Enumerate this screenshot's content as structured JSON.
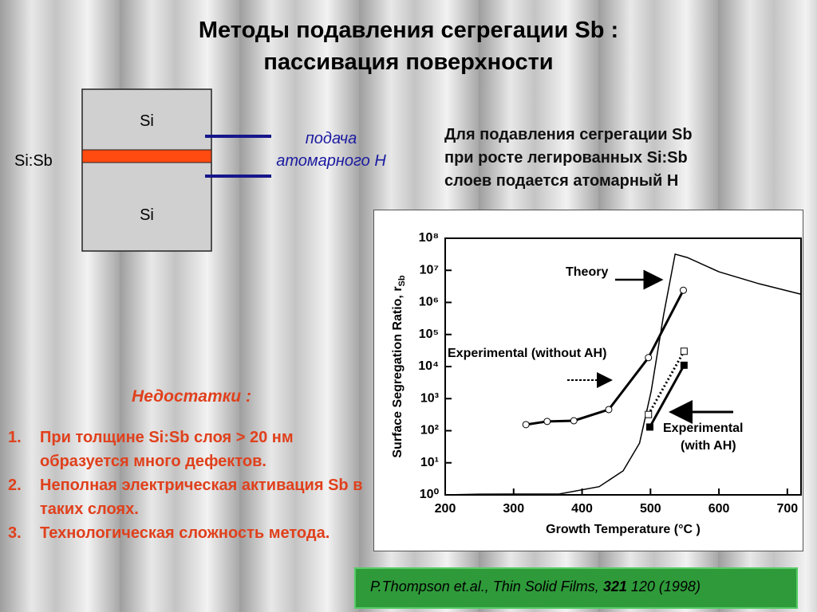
{
  "title": [
    "Методы подавления сегрегации Sb :",
    "пассивация поверхности"
  ],
  "diagram": {
    "top_layer": "Si",
    "middle_layer": "Si:Sb",
    "bottom_layer": "Si",
    "arrow_label": [
      "подача",
      "атомарного H"
    ]
  },
  "side_text": [
    "Для подавления сегрегации Sb",
    "при росте легированных Si:Sb",
    "слоев подается атомарный H"
  ],
  "drawbacks": {
    "heading": "Недостатки :",
    "items": [
      {
        "num": "1.",
        "text": "При толщине Si:Sb слоя > 20 нм образуется много дефектов."
      },
      {
        "num": "2.",
        "text": "Неполная электрическая активация Sb в таких слоях."
      },
      {
        "num": "3.",
        "text": "Технологическая сложность метода."
      }
    ]
  },
  "citation": {
    "prefix": "P.Thompson et.al., Thin Solid Films,",
    "volume": "321",
    "rest": "120 (1998)"
  },
  "chart_data": {
    "type": "line",
    "xlabel": "Growth Temperature (°C )",
    "ylabel": "Surface Segregation Ratio, r",
    "ylabel_sub": "Sb",
    "xlim": [
      200,
      720
    ],
    "xticks": [
      200,
      300,
      400,
      500,
      600,
      700
    ],
    "ylim": [
      1,
      100000000
    ],
    "log_y": true,
    "yticks": [
      {
        "value": 1,
        "label": "10⁰"
      },
      {
        "value": 10,
        "label": "10¹"
      },
      {
        "value": 100,
        "label": "10²"
      },
      {
        "value": 1000,
        "label": "10³"
      },
      {
        "value": 10000,
        "label": "10⁴"
      },
      {
        "value": 100000,
        "label": "10⁵"
      },
      {
        "value": 1000000,
        "label": "10⁶"
      },
      {
        "value": 10000000,
        "label": "10⁷"
      },
      {
        "value": 100000000,
        "label": "10⁸"
      }
    ],
    "series": [
      {
        "name": "Theory",
        "color": "#000000",
        "marker": "none",
        "dash": "solid",
        "x": [
          200,
          250,
          367,
          425,
          460,
          484,
          501,
          519,
          536,
          554,
          600,
          659,
          720
        ],
        "values": [
          1,
          1.05,
          1.07,
          1.8,
          5.6,
          41,
          1700,
          390000,
          32000000,
          25000000,
          9000000,
          3800000,
          1800000
        ]
      },
      {
        "name": "Experimental (without AH)",
        "color": "#000000",
        "marker": "circle-open",
        "dash": "solid",
        "x": [
          318,
          349,
          388,
          439,
          497,
          548
        ],
        "values": [
          155,
          195,
          205,
          457,
          19000,
          2400000
        ]
      },
      {
        "color": "#000000",
        "marker": "square-open",
        "dash": "dotted",
        "x": [
          497,
          549
        ],
        "values": [
          320,
          30000
        ]
      },
      {
        "color": "#000000",
        "marker": "square-filled",
        "dash": "solid",
        "x": [
          499,
          549
        ],
        "values": [
          130,
          11000
        ]
      }
    ],
    "annotations": [
      "Experimental",
      "(with AH)"
    ]
  }
}
